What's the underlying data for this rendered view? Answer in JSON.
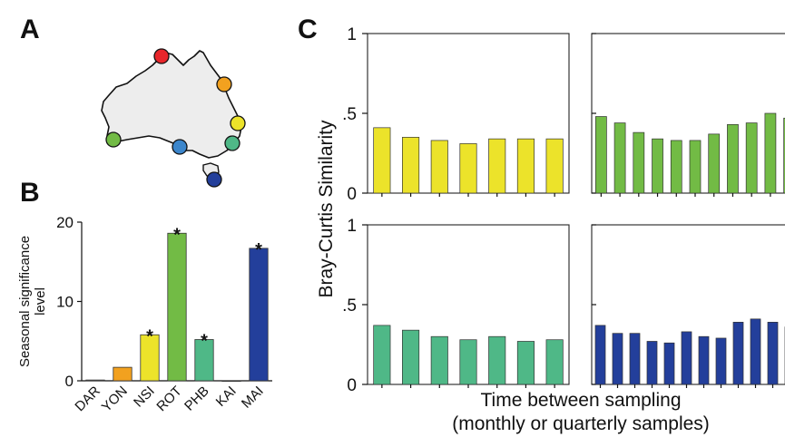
{
  "panels": {
    "a": "A",
    "b": "B",
    "c": "C"
  },
  "colors": {
    "DAR": "#d9d9d9",
    "YON": "#f2a11f",
    "NSI": "#ece32a",
    "ROT": "#72bb45",
    "PHB": "#4fb887",
    "KAI": "#cccccc",
    "MAI": "#233f9b",
    "map_red": "#e8262b",
    "map_blue_light": "#3b86cc"
  },
  "map": {
    "sites": [
      {
        "name": "DAR",
        "color": "#e8262b"
      },
      {
        "name": "YON",
        "color": "#f2a11f"
      },
      {
        "name": "NSI",
        "color": "#ece32a"
      },
      {
        "name": "PHB",
        "color": "#4fb887"
      },
      {
        "name": "ROT",
        "color": "#72bb45"
      },
      {
        "name": "KAI",
        "color": "#3b86cc"
      },
      {
        "name": "MAI",
        "color": "#233f9b"
      }
    ]
  },
  "chart_data": [
    {
      "id": "B",
      "type": "bar",
      "categories": [
        "DAR",
        "YON",
        "NSI",
        "ROT",
        "PHB",
        "KAI",
        "MAI"
      ],
      "values": [
        0.1,
        1.7,
        5.8,
        18.6,
        5.2,
        0,
        16.7
      ],
      "significant": [
        false,
        false,
        true,
        true,
        true,
        false,
        true
      ],
      "significance_marker": "*",
      "colors": [
        "#d9d9d9",
        "#f2a11f",
        "#ece32a",
        "#72bb45",
        "#4fb887",
        "#cccccc",
        "#233f9b"
      ],
      "ylabel_lines": [
        "Seasonal significance",
        "level"
      ],
      "ylim": [
        0,
        20
      ],
      "yticks": [
        "0",
        "10",
        "20"
      ]
    },
    {
      "id": "C",
      "type": "bar",
      "ylabel": "Bray-Curtis Similarity",
      "xlabel_lines": [
        "Time between sampling",
        "(monthly or quarterly samples)"
      ],
      "ylim": [
        0,
        1
      ],
      "yticks": [
        "0",
        ".5",
        "1"
      ],
      "subplots": [
        {
          "position": "top-left",
          "color": "#ece32a",
          "values": [
            0.41,
            0.35,
            0.33,
            0.31,
            0.34,
            0.34,
            0.34
          ]
        },
        {
          "position": "top-right",
          "color": "#72bb45",
          "values": [
            0.48,
            0.44,
            0.38,
            0.34,
            0.33,
            0.33,
            0.37,
            0.43,
            0.44,
            0.5,
            0.47
          ]
        },
        {
          "position": "bottom-left",
          "color": "#4fb887",
          "values": [
            0.37,
            0.34,
            0.3,
            0.28,
            0.3,
            0.27,
            0.28
          ]
        },
        {
          "position": "bottom-right",
          "color": "#233f9b",
          "values": [
            0.37,
            0.32,
            0.32,
            0.27,
            0.26,
            0.33,
            0.3,
            0.29,
            0.39,
            0.41,
            0.39,
            0.36
          ]
        }
      ]
    }
  ]
}
